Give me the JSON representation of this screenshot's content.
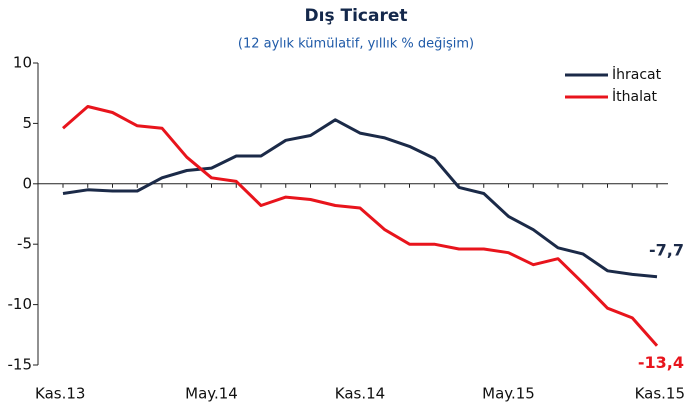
{
  "chart_data": {
    "type": "line",
    "title": "Dış Ticaret",
    "subtitle": "(12 aylık kümülatif, yıllık % değişim)",
    "categories": [
      "Kas.13",
      null,
      null,
      null,
      null,
      null,
      "May.14",
      null,
      null,
      null,
      null,
      null,
      "Kas.14",
      null,
      null,
      null,
      null,
      null,
      "May.15",
      null,
      null,
      null,
      null,
      null,
      "Kas.15"
    ],
    "series": [
      {
        "name": "İhracat",
        "color": "#1b2a48",
        "values": [
          -0.8,
          -0.5,
          -0.6,
          -0.6,
          0.5,
          1.1,
          1.3,
          2.3,
          2.3,
          3.6,
          4.0,
          5.3,
          4.2,
          3.8,
          3.1,
          2.1,
          -0.3,
          -0.8,
          -2.7,
          -3.8,
          -5.3,
          -5.8,
          -7.2,
          -7.5,
          -7.7
        ],
        "value_labels": [
          null,
          null,
          null,
          null,
          null,
          null,
          null,
          null,
          null,
          null,
          null,
          null,
          null,
          null,
          null,
          null,
          null,
          null,
          null,
          null,
          null,
          null,
          null,
          null,
          "-7,7"
        ]
      },
      {
        "name": "İthalat",
        "color": "#e8141c",
        "values": [
          4.6,
          6.4,
          5.9,
          4.8,
          4.6,
          2.2,
          0.5,
          0.2,
          -1.8,
          -1.1,
          -1.3,
          -1.8,
          -2.0,
          -3.8,
          -5.0,
          -5.0,
          -5.4,
          -5.4,
          -5.7,
          -6.7,
          -6.2,
          -8.2,
          -10.3,
          -11.1,
          -13.4
        ],
        "value_labels": [
          null,
          null,
          null,
          null,
          null,
          null,
          null,
          null,
          null,
          null,
          null,
          null,
          null,
          null,
          null,
          null,
          null,
          null,
          null,
          null,
          null,
          null,
          null,
          null,
          "-13,4"
        ]
      }
    ],
    "ylim": [
      -15,
      10
    ],
    "yticks": [
      -15,
      -10,
      -5,
      0,
      5,
      10
    ],
    "legend": "top-right",
    "grid": false
  }
}
